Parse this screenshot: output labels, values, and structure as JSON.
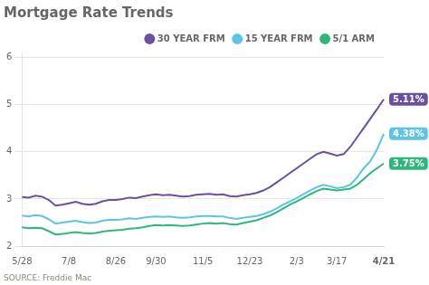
{
  "chart_data": {
    "type": "line",
    "title": "Mortgage Rate Trends",
    "source": "SOURCE: Freddie Mac",
    "categories": [
      "5/28",
      null,
      null,
      null,
      null,
      null,
      null,
      "7/8",
      null,
      null,
      null,
      null,
      null,
      null,
      "8/26",
      null,
      null,
      null,
      null,
      null,
      "9/30",
      null,
      null,
      null,
      null,
      null,
      null,
      "11/5",
      null,
      null,
      null,
      null,
      null,
      null,
      "12/23",
      null,
      null,
      null,
      null,
      null,
      null,
      "2/3",
      null,
      null,
      null,
      null,
      null,
      "3/17",
      null,
      null,
      null,
      null,
      null,
      null,
      "4/21"
    ],
    "series": [
      {
        "name": "30 YEAR FRM",
        "color": "#6b4fa0",
        "values": [
          3.04,
          3.03,
          3.07,
          3.05,
          2.98,
          2.86,
          2.88,
          2.91,
          2.94,
          2.9,
          2.88,
          2.9,
          2.95,
          2.98,
          2.98,
          3.0,
          3.03,
          3.02,
          3.05,
          3.08,
          3.1,
          3.08,
          3.09,
          3.07,
          3.05,
          3.06,
          3.09,
          3.1,
          3.11,
          3.09,
          3.1,
          3.06,
          3.05,
          3.08,
          3.1,
          3.13,
          3.18,
          3.25,
          3.35,
          3.45,
          3.55,
          3.65,
          3.75,
          3.85,
          3.95,
          4.0,
          3.96,
          3.92,
          3.95,
          4.1,
          4.3,
          4.5,
          4.7,
          4.9,
          5.11
        ]
      },
      {
        "name": "15 YEAR FRM",
        "color": "#5bc5e5",
        "values": [
          2.65,
          2.63,
          2.66,
          2.64,
          2.57,
          2.48,
          2.5,
          2.52,
          2.54,
          2.51,
          2.49,
          2.5,
          2.54,
          2.56,
          2.56,
          2.57,
          2.59,
          2.58,
          2.6,
          2.62,
          2.63,
          2.62,
          2.63,
          2.61,
          2.6,
          2.61,
          2.63,
          2.64,
          2.64,
          2.63,
          2.63,
          2.6,
          2.58,
          2.6,
          2.62,
          2.64,
          2.68,
          2.73,
          2.8,
          2.88,
          2.95,
          3.02,
          3.1,
          3.18,
          3.25,
          3.3,
          3.27,
          3.23,
          3.25,
          3.3,
          3.45,
          3.65,
          3.8,
          4.05,
          4.38
        ]
      },
      {
        "name": "5/1 ARM",
        "color": "#2db87a",
        "values": [
          2.4,
          2.38,
          2.39,
          2.38,
          2.32,
          2.25,
          2.26,
          2.28,
          2.3,
          2.28,
          2.27,
          2.28,
          2.31,
          2.33,
          2.34,
          2.35,
          2.37,
          2.38,
          2.4,
          2.43,
          2.45,
          2.44,
          2.45,
          2.44,
          2.43,
          2.44,
          2.46,
          2.48,
          2.49,
          2.48,
          2.49,
          2.47,
          2.46,
          2.49,
          2.52,
          2.55,
          2.6,
          2.65,
          2.72,
          2.8,
          2.88,
          2.95,
          3.02,
          3.1,
          3.17,
          3.22,
          3.2,
          3.18,
          3.2,
          3.22,
          3.3,
          3.42,
          3.55,
          3.65,
          3.75
        ]
      }
    ],
    "ylim": [
      2,
      6.1
    ],
    "yticks": [
      2,
      3,
      4,
      5,
      6
    ],
    "grid": "y",
    "legend": "top",
    "annotations": [
      {
        "text": "5.11%",
        "y": 5.11,
        "color": "#6b4fa0"
      },
      {
        "text": "4.38%",
        "y": 4.38,
        "color": "#5bc5e5"
      },
      {
        "text": "3.75%",
        "y": 3.75,
        "color": "#2db87a"
      }
    ]
  }
}
